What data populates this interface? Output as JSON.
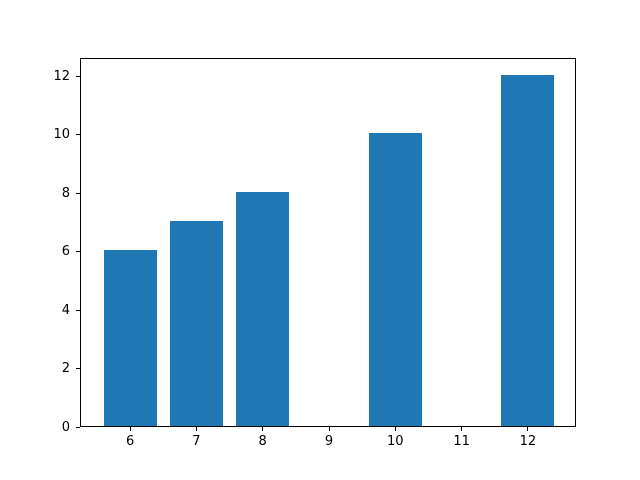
{
  "chart_data": {
    "type": "bar",
    "x": [
      6,
      7,
      8,
      10,
      12
    ],
    "values": [
      6,
      7,
      8,
      10,
      12
    ],
    "bar_width": 0.8,
    "bar_color": "#1f77b4",
    "title": "",
    "xlabel": "",
    "ylabel": "",
    "xlim": [
      5.26,
      12.74
    ],
    "ylim": [
      0,
      12.6
    ],
    "x_ticks": [
      6,
      7,
      8,
      9,
      10,
      11,
      12
    ],
    "x_tick_labels": [
      "6",
      "7",
      "8",
      "9",
      "10",
      "11",
      "12"
    ],
    "y_ticks": [
      0,
      2,
      4,
      6,
      8,
      10,
      12
    ],
    "y_tick_labels": [
      "0",
      "2",
      "4",
      "6",
      "8",
      "10",
      "12"
    ],
    "grid": false,
    "legend": null,
    "spine_color": "#000000",
    "background_color": "#ffffff"
  }
}
